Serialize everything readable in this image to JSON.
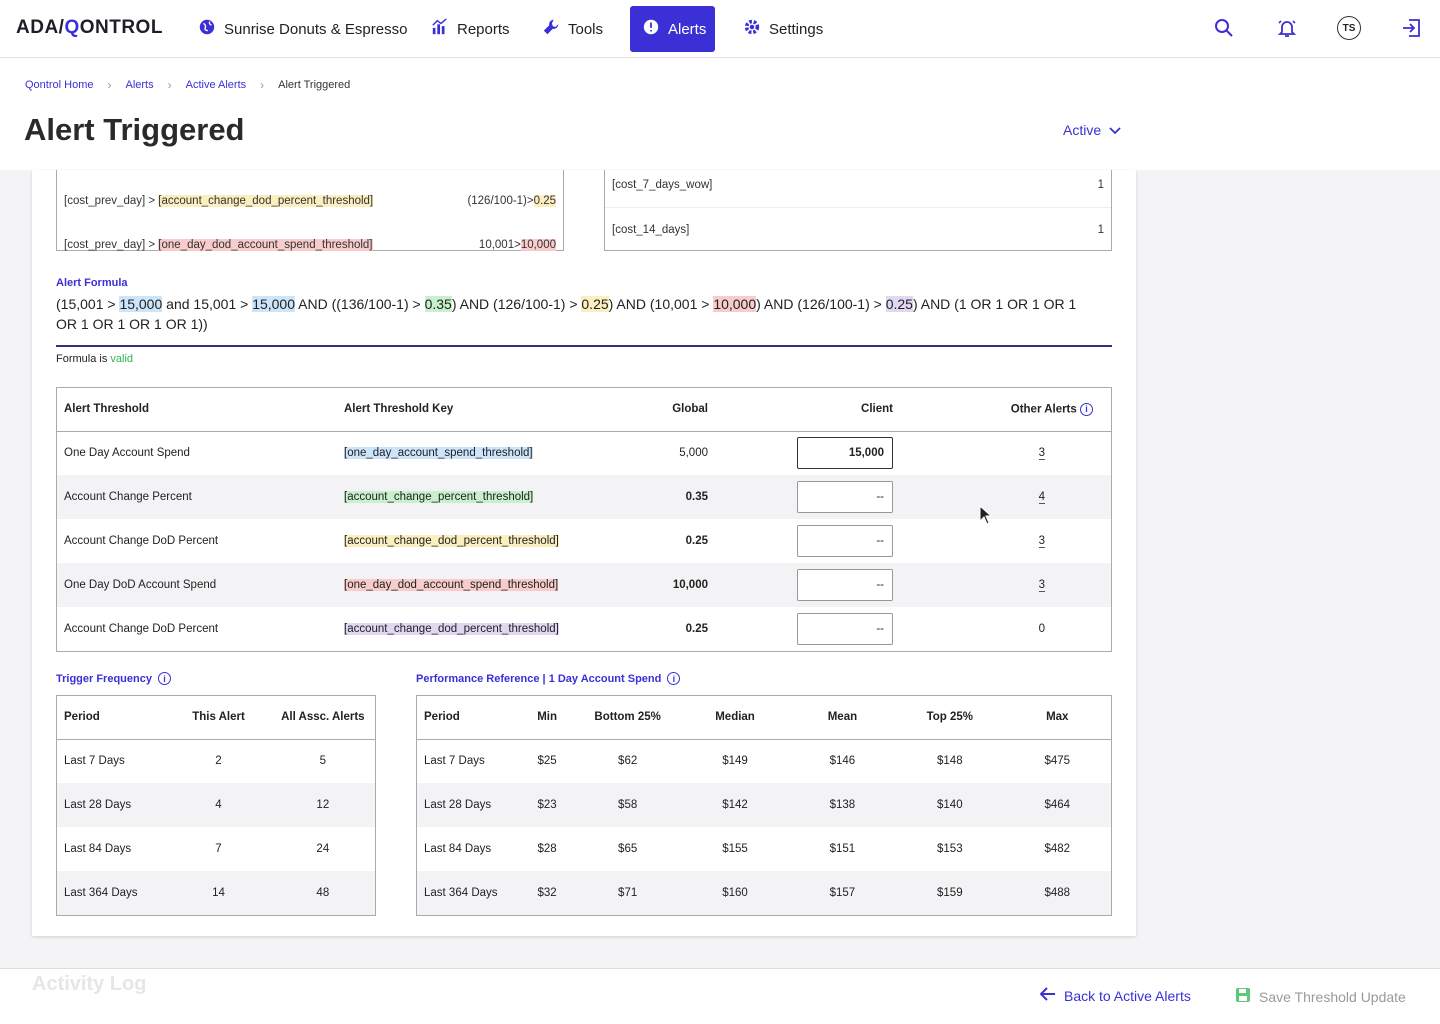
{
  "nav": {
    "logo_left": "ADA/",
    "logo_q": "Q",
    "logo_right": "ONTROL",
    "items": [
      {
        "label": "Sunrise Donuts & Espresso",
        "icon": "globe-icon"
      },
      {
        "label": "Reports",
        "icon": "bar-chart-icon"
      },
      {
        "label": "Tools",
        "icon": "wrench-icon"
      },
      {
        "label": "Alerts",
        "icon": "alert-icon",
        "active": true
      },
      {
        "label": "Settings",
        "icon": "gear-icon"
      }
    ],
    "avatar_initials": "TS",
    "accent": "#3b2fd6"
  },
  "breadcrumb": [
    "Qontrol Home",
    "Alerts",
    "Active Alerts",
    "Alert Triggered"
  ],
  "page": {
    "title": "Alert Triggered",
    "status": "Active"
  },
  "conditions": {
    "left": [
      {
        "prefix": "[cost_prev_day] > ",
        "key": "[account_change_dod_percent_threshold]",
        "expr": "(126/100-1)>",
        "value": "0.25"
      },
      {
        "prefix": "[cost_prev_day] > ",
        "key": "[one_day_dod_account_spend_threshold]",
        "expr": "10,001>",
        "value": "10,000"
      }
    ],
    "right": [
      {
        "key": "[cost_7_days_wow]",
        "value": "1"
      },
      {
        "key": "[cost_14_days]",
        "value": "1"
      }
    ]
  },
  "formula": {
    "label": "Alert Formula",
    "parts": [
      {
        "t": "(15,001 > "
      },
      {
        "t": "15,000",
        "hl": "blue"
      },
      {
        "t": " and 15,001 > "
      },
      {
        "t": "15,000",
        "hl": "blue"
      },
      {
        "t": " AND ((136/100-1) > "
      },
      {
        "t": "0.35",
        "hl": "green"
      },
      {
        "t": ") AND (126/100-1) > "
      },
      {
        "t": "0.25",
        "hl": "yellow"
      },
      {
        "t": ") AND (10,001 > "
      },
      {
        "t": "10,000",
        "hl": "red"
      },
      {
        "t": ") AND (126/100-1) > "
      },
      {
        "t": "0.25",
        "hl": "purple"
      },
      {
        "t": ") AND (1 OR 1 OR 1 OR 1 OR 1 OR 1 OR 1 OR 1))"
      }
    ],
    "status_prefix": "Formula is ",
    "status_value": "valid"
  },
  "thresholds": {
    "headers": [
      "Alert Threshold",
      "Alert Threshold Key",
      "Global",
      "Client",
      "Other Alerts"
    ],
    "rows": [
      {
        "name": "One Day Account Spend",
        "key": "[one_day_account_spend_threshold]",
        "hl": "blue",
        "global": "5,000",
        "client": "15,000",
        "other": "3"
      },
      {
        "name": "Account Change Percent",
        "key": "[account_change_percent_threshold]",
        "hl": "green",
        "global": "0.35",
        "client": "--",
        "other": "4"
      },
      {
        "name": "Account Change DoD Percent",
        "key": "[account_change_dod_percent_threshold]",
        "hl": "yellow",
        "global": "0.25",
        "client": "--",
        "other": "3"
      },
      {
        "name": "One Day DoD Account Spend",
        "key": "[one_day_dod_account_spend_threshold]",
        "hl": "red",
        "global": "10,000",
        "client": "--",
        "other": "3"
      },
      {
        "name": "Account Change DoD Percent",
        "key": "[account_change_dod_percent_threshold]",
        "hl": "purple",
        "global": "0.25",
        "client": "--",
        "other": "0"
      }
    ]
  },
  "trigger_frequency": {
    "label": "Trigger Frequency",
    "headers": [
      "Period",
      "This Alert",
      "All Assc. Alerts"
    ],
    "rows": [
      [
        "Last 7 Days",
        "2",
        "5"
      ],
      [
        "Last 28 Days",
        "4",
        "12"
      ],
      [
        "Last 84 Days",
        "7",
        "24"
      ],
      [
        "Last 364 Days",
        "14",
        "48"
      ]
    ]
  },
  "performance": {
    "label": "Performance Reference | 1 Day Account Spend",
    "headers": [
      "Period",
      "Min",
      "Bottom 25%",
      "Median",
      "Mean",
      "Top 25%",
      "Max"
    ],
    "rows": [
      [
        "Last 7 Days",
        "$25",
        "$62",
        "$149",
        "$146",
        "$148",
        "$475"
      ],
      [
        "Last 28 Days",
        "$23",
        "$58",
        "$142",
        "$138",
        "$140",
        "$464"
      ],
      [
        "Last 84 Days",
        "$28",
        "$65",
        "$155",
        "$151",
        "$153",
        "$482"
      ],
      [
        "Last 364 Days",
        "$32",
        "$71",
        "$160",
        "$157",
        "$159",
        "$488"
      ]
    ]
  },
  "footer": {
    "activity_log": "Activity Log",
    "back": "Back to Active Alerts",
    "save": "Save Threshold Update"
  }
}
